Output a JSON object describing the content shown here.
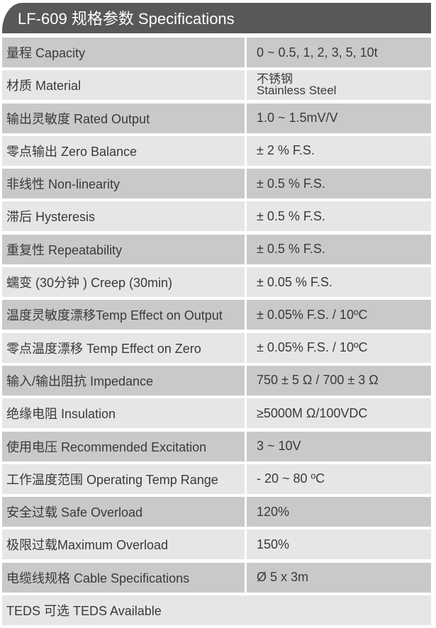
{
  "title": "LF-609 规格参数 Specifications",
  "rows": [
    {
      "label": "量程 Capacity",
      "value": "0 ~ 0.5, 1, 2, 3, 5, 10t"
    },
    {
      "label": "材质 Material",
      "value": "不锈钢",
      "value2": "Stainless Steel"
    },
    {
      "label": "输出灵敏度 Rated Output",
      "value": "1.0 ~ 1.5mV/V"
    },
    {
      "label": "零点输出  Zero Balance",
      "value": "± 2 % F.S."
    },
    {
      "label": "非线性 Non-linearity",
      "value": "± 0.5 % F.S."
    },
    {
      "label": "滞后 Hysteresis",
      "value": "± 0.5 % F.S."
    },
    {
      "label": "重复性 Repeatability",
      "value": "± 0.5 % F.S."
    },
    {
      "label": "蠕变 (30分钟 ) Creep (30min)",
      "value": "± 0.05 % F.S."
    },
    {
      "label": "温度灵敏度漂移Temp Effect on Output",
      "value": "± 0.05% F.S. / 10ºC"
    },
    {
      "label": "零点温度漂移 Temp Effect on Zero",
      "value": "± 0.05% F.S. / 10ºC"
    },
    {
      "label": "输入/输出阻抗 Impedance",
      "value": "750 ± 5 Ω  / 700 ± 3 Ω"
    },
    {
      "label": "绝缘电阻  Insulation",
      "value": "≥5000M Ω/100VDC"
    },
    {
      "label": "使用电压 Recommended Excitation",
      "value": "3 ~ 10V"
    },
    {
      "label": "工作温度范围 Operating Temp  Range",
      "value": "- 20 ~ 80 ºC"
    },
    {
      "label": "安全过载 Safe Overload",
      "value": "120%"
    },
    {
      "label": "极限过载Maximum Overload",
      "value": "150%"
    },
    {
      "label": "电缆线规格 Cable Specifications",
      "value": "Ø 5 x 3m"
    }
  ],
  "footer": "TEDS 可选 TEDS Available"
}
